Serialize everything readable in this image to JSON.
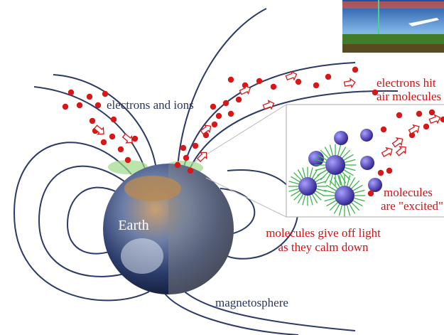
{
  "labels": {
    "electrons_and_ions": "electrons and ions",
    "electrons_hit": [
      "electrons hit",
      "air molecules"
    ],
    "excited": [
      "molecules",
      "are \"excited\""
    ],
    "light": [
      "molecules give off light",
      "as they calm down"
    ],
    "earth": "Earth",
    "magnetosphere": "magnetosphere"
  }
}
